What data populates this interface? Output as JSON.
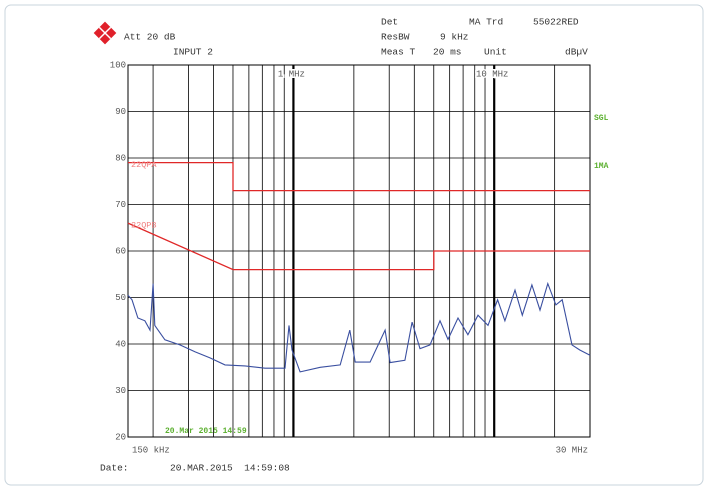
{
  "header": {
    "att": "Att 20 dB",
    "input": "INPUT 2",
    "det_label": "Det",
    "det_value": "MA Trd",
    "limit_set": "55022RED",
    "rbw_label": "ResBW",
    "rbw_value": "9 kHz",
    "meas_label": "Meas T",
    "meas_value": "20 ms",
    "unit_label": "Unit",
    "unit_value": "dBµV",
    "mode": "SGL"
  },
  "chart_data": {
    "type": "line",
    "xscale": "log",
    "grid": true,
    "xlim": [
      150000,
      30000000
    ],
    "ylim": [
      20,
      100
    ],
    "yticks": [
      20,
      30,
      40,
      50,
      60,
      70,
      80,
      90,
      100
    ],
    "xticks": [
      {
        "value": 150000,
        "label": "150 kHz"
      },
      {
        "value": 1000000,
        "label": "1 MHz"
      },
      {
        "value": 10000000,
        "label": "10 MHz"
      },
      {
        "value": 30000000,
        "label": "30 MHz"
      }
    ],
    "xgrid": [
      200000,
      300000,
      400000,
      500000,
      600000,
      700000,
      800000,
      900000,
      2000000,
      3000000,
      4000000,
      5000000,
      6000000,
      7000000,
      8000000,
      9000000,
      20000000
    ],
    "series": [
      {
        "name": "22QPA",
        "color": "#e02828",
        "x": [
          150000,
          500000,
          500000,
          30000000
        ],
        "values": [
          79,
          79,
          73,
          73
        ]
      },
      {
        "name": "22QPB",
        "color": "#e02828",
        "x": [
          150000,
          500000,
          5000000,
          5000000,
          30000000
        ],
        "values": [
          66,
          56,
          56,
          60,
          60
        ]
      },
      {
        "name": "1MA",
        "color": "#3a4fa0",
        "x": [
          150000,
          157000,
          168000,
          182000,
          193000,
          200000,
          204000,
          229000,
          272000,
          324000,
          384000,
          456000,
          574000,
          722000,
          908000,
          951000,
          984000,
          1080000,
          1360000,
          1710000,
          1910000,
          2030000,
          2410000,
          2860000,
          3030000,
          3590000,
          3900000,
          4270000,
          4790000,
          5370000,
          5890000,
          6600000,
          7400000,
          8300000,
          9310000,
          10400000,
          11300000,
          12700000,
          13800000,
          15400000,
          16900000,
          18500000,
          20300000,
          21800000,
          24400000,
          26700000,
          30000000
        ],
        "values": [
          50.5,
          49.5,
          45.6,
          45,
          43,
          53,
          44,
          40.9,
          39.8,
          38.3,
          37,
          35.5,
          35.3,
          34.8,
          34.8,
          44,
          38.7,
          34,
          35,
          35.5,
          43,
          36.1,
          36.1,
          43,
          36,
          36.5,
          44.7,
          39,
          39.8,
          45,
          41,
          45.6,
          42,
          46.2,
          44,
          49.5,
          45,
          51.6,
          46.2,
          52.7,
          47.3,
          53,
          48.4,
          49.5,
          39.8,
          38.7,
          37.6
        ]
      }
    ],
    "timestamp": "20.Mar 2015 14:59"
  },
  "footer": {
    "date_label": "Date:",
    "date": "20.MAR.2015  14:59:08"
  }
}
